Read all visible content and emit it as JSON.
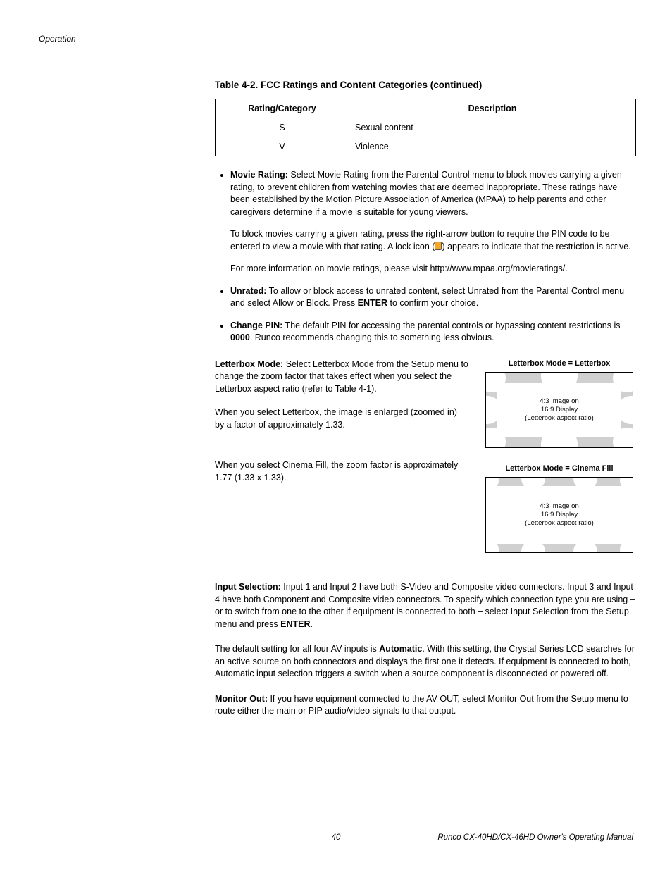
{
  "header": {
    "section": "Operation"
  },
  "table": {
    "title": "Table 4-2. FCC Ratings and Content Categories (continued)",
    "columns": [
      "Rating/Category",
      "Description"
    ],
    "rows": [
      [
        "S",
        "Sexual content"
      ],
      [
        "V",
        "Violence"
      ]
    ]
  },
  "bullets": {
    "movie_rating_label": "Movie Rating:",
    "movie_rating_text": " Select Movie Rating from the Parental Control menu to block movies carrying a given rating, to prevent children from watching movies that are deemed inappropriate. These ratings have been established by the Motion Picture Association of America (MPAA) to help parents and other caregivers determine if a movie is suitable for young viewers.",
    "movie_rating_p2a": "To block movies carrying a given rating, press the right-arrow button to require the PIN code to be entered to view a movie with that rating. A lock icon (",
    "movie_rating_p2b": ") appears to indicate that the restriction is active.",
    "movie_rating_p3": "For more information on movie ratings, please visit http://www.mpaa.org/movieratings/.",
    "unrated_label": "Unrated:",
    "unrated_text_a": " To allow or block access to unrated content, select Unrated from the Parental Control menu and select Allow or Block. Press ",
    "unrated_enter": "ENTER",
    "unrated_text_b": " to confirm your choice.",
    "change_pin_label": "Change PIN:",
    "change_pin_text_a": " The default PIN for accessing the parental controls or bypassing content restrictions is ",
    "change_pin_code": "0000",
    "change_pin_text_b": ". Runco recommends changing this to something less obvious."
  },
  "letterbox": {
    "label": "Letterbox Mode:",
    "p1": " Select Letterbox Mode from the Setup menu to change the zoom factor that takes effect when you select the Letterbox aspect ratio (refer to Table 4-1).",
    "p2": "When you select Letterbox, the image is enlarged (zoomed in) by a factor of approximately 1.33.",
    "p3": "When you select Cinema Fill, the zoom factor is approximately 1.77 (1.33 x 1.33)."
  },
  "diagrams": {
    "letterbox_title": "Letterbox Mode = Letterbox",
    "cinema_title": "Letterbox Mode = Cinema Fill",
    "caption": "4:3 Image on\n16:9 Display\n(Letterbox aspect ratio)"
  },
  "input_selection": {
    "label": "Input Selection:",
    "p1": " Input 1 and Input 2 have both S-Video and Composite video connectors. Input 3 and Input 4 have both Component and Composite video connectors. To specify which connection type you are using – or to switch from one to the other if equipment is connected to both – select Input Selection from the Setup menu and press ",
    "enter": "ENTER",
    "p1_end": ".",
    "p2a": "The default setting for all four AV inputs is ",
    "auto": "Automatic",
    "p2b": ". With this setting, the Crystal Series LCD searches for an active source on both connectors and displays the first one it detects. If equipment is connected to both, Automatic input selection triggers a switch when a source component is disconnected or powered off."
  },
  "monitor_out": {
    "label": "Monitor Out:",
    "text": " If you have equipment connected to the AV OUT, select Monitor Out from the Setup menu to route either the main or PIP audio/video signals to that output."
  },
  "footer": {
    "page": "40",
    "manual": "Runco CX-40HD/CX-46HD Owner's Operating Manual"
  }
}
